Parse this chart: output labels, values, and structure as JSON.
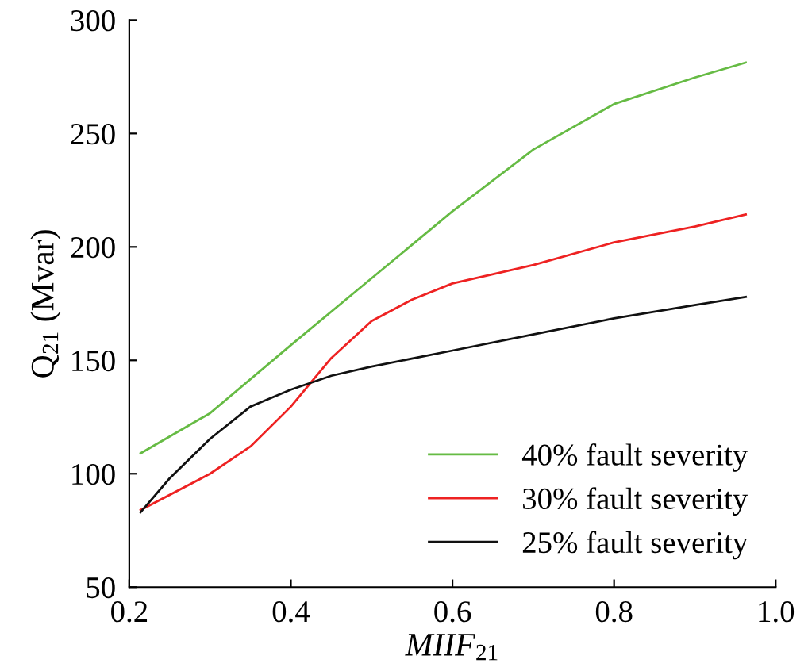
{
  "chart_data": {
    "type": "line",
    "xlabel": "MIIF$_{21}$",
    "ylabel": "Q$_{21}$ (Mvar)",
    "xlim": [
      0.2,
      1.0
    ],
    "xticks": [
      0.2,
      0.4,
      0.6,
      0.8,
      {
        "value": 1.0,
        "label": "1.0"
      }
    ],
    "ylim": [
      50,
      300
    ],
    "yticks": [
      50,
      100,
      150,
      200,
      250,
      300
    ],
    "grid": false,
    "legend": "bottom right",
    "marker": "none",
    "line_style": "solid",
    "series": [
      {
        "name": "40% fault severity",
        "color": "#66bb44",
        "x": [
          0.214,
          0.3,
          0.4,
          0.5,
          0.6,
          0.7,
          0.8,
          0.9,
          0.963
        ],
        "values": [
          109,
          126.7,
          156.7,
          186.2,
          215.7,
          242.9,
          263,
          274.7,
          281.3
        ]
      },
      {
        "name": "30% fault severity",
        "color": "#ee2222",
        "x": [
          0.214,
          0.3,
          0.35,
          0.4,
          0.45,
          0.5,
          0.55,
          0.6,
          0.7,
          0.8,
          0.9,
          0.963
        ],
        "values": [
          84,
          100,
          112,
          129.6,
          151,
          167.3,
          176.8,
          183.9,
          192,
          202,
          209,
          214.3
        ]
      },
      {
        "name": "25% fault severity",
        "color": "#111111",
        "x": [
          0.214,
          0.25,
          0.3,
          0.35,
          0.4,
          0.45,
          0.5,
          0.6,
          0.7,
          0.8,
          0.9,
          0.963
        ],
        "values": [
          83,
          98,
          115.4,
          129.6,
          137.1,
          143.2,
          147.3,
          154.3,
          161.4,
          168.5,
          174.4,
          178
        ]
      }
    ]
  }
}
